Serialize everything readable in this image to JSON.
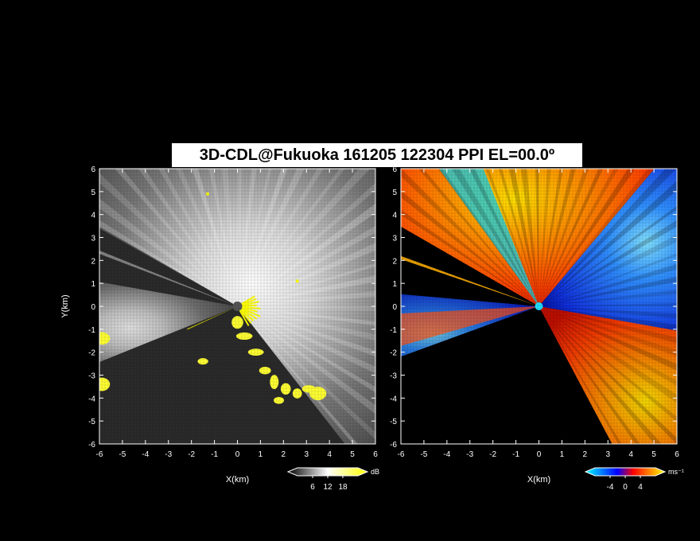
{
  "title": "3D-CDL@Fukuoka 161205 122304 PPI EL=00.0º",
  "chart_data": [
    {
      "type": "heatmap",
      "panel": "left",
      "quantity": "reflectivity",
      "xlabel": "X(km)",
      "ylabel": "Y(km)",
      "xlim": [
        -6,
        6
      ],
      "ylim": [
        -6,
        6
      ],
      "xticks": [
        -6,
        -5,
        -4,
        -3,
        -2,
        -1,
        0,
        1,
        2,
        3,
        4,
        5,
        6
      ],
      "yticks": [
        -6,
        -5,
        -4,
        -3,
        -2,
        -1,
        0,
        1,
        2,
        3,
        4,
        5,
        6
      ],
      "grid": false,
      "colorbar": {
        "unit": "dB",
        "ticks": [
          6,
          12,
          18
        ],
        "range": [
          0,
          24
        ],
        "colors": [
          "#000000",
          "#ffffff",
          "#ffff00"
        ]
      }
    },
    {
      "type": "heatmap",
      "panel": "right",
      "quantity": "doppler velocity",
      "xlabel": "X(km)",
      "ylabel": "",
      "xlim": [
        -6,
        6
      ],
      "ylim": [
        -6,
        6
      ],
      "xticks": [
        -6,
        -5,
        -4,
        -3,
        -2,
        -1,
        0,
        1,
        2,
        3,
        4,
        5,
        6
      ],
      "yticks": [
        -6,
        -5,
        -4,
        -3,
        -2,
        -1,
        0,
        1,
        2,
        3,
        4,
        5,
        6
      ],
      "grid": false,
      "colorbar": {
        "unit": "ms⁻¹",
        "ticks": [
          -4,
          0,
          4
        ],
        "range": [
          -8,
          8
        ],
        "colors": [
          "#00ffff",
          "#0080ff",
          "#0000ff",
          "#ff0000",
          "#ff8000",
          "#ffff00"
        ]
      }
    }
  ]
}
